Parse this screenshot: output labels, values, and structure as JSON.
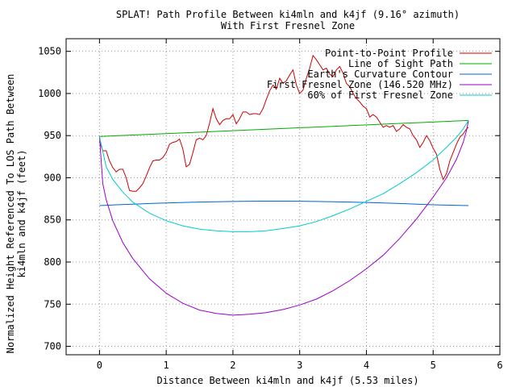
{
  "chart_data": {
    "type": "line",
    "title": "SPLAT! Path Profile Between ki4mln and k4jf (9.16° azimuth)",
    "subtitle": "With First Fresnel Zone",
    "xlabel": "Distance Between ki4mln and k4jf (5.53 miles)",
    "ylabel_line1": "Normalized Height Referenced To LOS Path Between",
    "ylabel_line2": "ki4mln and k4jf (feet)",
    "xlim": [
      -0.5,
      6
    ],
    "ylim": [
      690,
      1065
    ],
    "x_ticks": [
      "0",
      "1",
      "2",
      "3",
      "4",
      "5",
      "6"
    ],
    "y_ticks": [
      "700",
      "750",
      "800",
      "850",
      "900",
      "950",
      "1000",
      "1050"
    ],
    "x_tick_values": [
      0,
      1,
      2,
      3,
      4,
      5,
      6
    ],
    "y_tick_values": [
      700,
      750,
      800,
      850,
      900,
      950,
      1000,
      1050
    ],
    "grid": "dotted",
    "legend_position": "top-right",
    "series": [
      {
        "name": "Point-to-Point Profile",
        "color": "#cc0000",
        "x": [
          0,
          0.05,
          0.1,
          0.15,
          0.2,
          0.25,
          0.3,
          0.35,
          0.4,
          0.45,
          0.5,
          0.55,
          0.6,
          0.65,
          0.7,
          0.75,
          0.8,
          0.85,
          0.9,
          0.95,
          1.0,
          1.05,
          1.1,
          1.15,
          1.2,
          1.25,
          1.3,
          1.35,
          1.4,
          1.45,
          1.5,
          1.55,
          1.6,
          1.65,
          1.7,
          1.75,
          1.8,
          1.85,
          1.9,
          1.95,
          2.0,
          2.05,
          2.1,
          2.15,
          2.2,
          2.25,
          2.3,
          2.35,
          2.4,
          2.45,
          2.5,
          2.55,
          2.6,
          2.65,
          2.7,
          2.75,
          2.8,
          2.85,
          2.9,
          2.95,
          3.0,
          3.05,
          3.1,
          3.15,
          3.2,
          3.25,
          3.3,
          3.35,
          3.4,
          3.45,
          3.5,
          3.55,
          3.6,
          3.65,
          3.7,
          3.75,
          3.8,
          3.85,
          3.9,
          3.95,
          4.0,
          4.05,
          4.1,
          4.15,
          4.2,
          4.25,
          4.3,
          4.35,
          4.4,
          4.45,
          4.5,
          4.55,
          4.6,
          4.65,
          4.7,
          4.75,
          4.8,
          4.85,
          4.9,
          4.95,
          5.0,
          5.05,
          5.1,
          5.15,
          5.2,
          5.25,
          5.3,
          5.35,
          5.4,
          5.45,
          5.5,
          5.53
        ],
        "values": [
          943,
          932,
          932,
          920,
          912,
          907,
          910,
          910,
          900,
          885,
          884,
          884,
          888,
          893,
          902,
          912,
          920,
          921,
          921,
          924,
          930,
          940,
          942,
          943,
          946,
          934,
          913,
          916,
          930,
          945,
          947,
          945,
          950,
          965,
          982,
          970,
          963,
          968,
          970,
          970,
          975,
          964,
          970,
          978,
          978,
          975,
          976,
          976,
          975,
          982,
          993,
          1003,
          1010,
          1005,
          1018,
          1012,
          1015,
          1022,
          1028,
          1010,
          1000,
          1004,
          1018,
          1030,
          1045,
          1040,
          1034,
          1028,
          1030,
          1023,
          1020,
          1028,
          1032,
          1024,
          1012,
          1008,
          1000,
          994,
          990,
          985,
          982,
          972,
          975,
          972,
          966,
          960,
          962,
          960,
          962,
          955,
          958,
          963,
          960,
          958,
          950,
          945,
          936,
          942,
          950,
          944,
          935,
          928,
          910,
          898,
          905,
          920,
          930,
          940,
          948,
          952,
          958,
          960
        ]
      },
      {
        "name": "Line of Sight Path",
        "color": "#00aa00",
        "x": [
          0,
          5.53
        ],
        "values": [
          949,
          968
        ]
      },
      {
        "name": "Earth's Curvature Contour",
        "color": "#0066cc",
        "x": [
          0,
          0.25,
          0.5,
          0.75,
          1.0,
          1.25,
          1.5,
          1.75,
          2.0,
          2.25,
          2.5,
          2.75,
          3.0,
          3.25,
          3.5,
          3.75,
          4.0,
          4.25,
          4.5,
          4.75,
          5.0,
          5.25,
          5.53
        ],
        "values": [
          867,
          867.9,
          868.7,
          869.5,
          870.1,
          870.7,
          871.2,
          871.6,
          871.9,
          872.1,
          872.2,
          872.2,
          872.1,
          871.9,
          871.6,
          871.2,
          870.7,
          870.1,
          869.5,
          868.7,
          867.9,
          867.5,
          867
        ]
      },
      {
        "name": "First Fresnel Zone (146.520 MHz)",
        "color": "#9900cc",
        "x": [
          0,
          0.05,
          0.1,
          0.2,
          0.35,
          0.5,
          0.75,
          1.0,
          1.25,
          1.5,
          1.75,
          2.0,
          2.25,
          2.5,
          2.765,
          3.0,
          3.25,
          3.5,
          3.75,
          4.0,
          4.25,
          4.5,
          4.75,
          5.0,
          5.2,
          5.35,
          5.45,
          5.5,
          5.53
        ],
        "values": [
          949,
          893,
          874,
          849,
          823,
          804,
          780,
          763,
          751,
          743,
          739,
          737,
          738,
          740,
          744,
          749,
          756,
          766,
          778,
          792,
          808,
          828,
          851,
          877,
          900,
          922,
          942,
          956,
          968
        ]
      },
      {
        "name": "60% of First Fresnel Zone",
        "color": "#00cccc",
        "x": [
          0,
          0.1,
          0.2,
          0.35,
          0.5,
          0.75,
          1.0,
          1.25,
          1.5,
          1.75,
          2.0,
          2.25,
          2.5,
          2.765,
          3.0,
          3.25,
          3.5,
          3.75,
          4.0,
          4.25,
          4.5,
          4.75,
          5.0,
          5.2,
          5.35,
          5.45,
          5.53
        ],
        "values": [
          949,
          913,
          898,
          883,
          871,
          858,
          849,
          843,
          839,
          837,
          836,
          836,
          837,
          840,
          843,
          848,
          855,
          863,
          872,
          881,
          893,
          906,
          921,
          936,
          948,
          958,
          968
        ]
      }
    ]
  }
}
